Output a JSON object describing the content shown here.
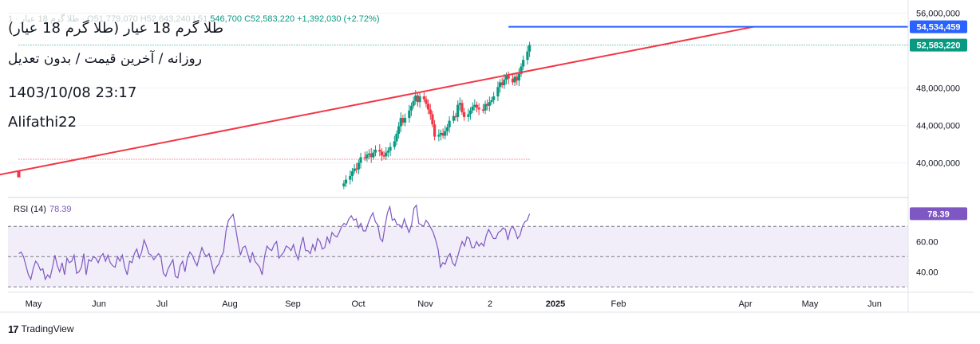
{
  "header": {
    "ohlc_faded": "طلا گرم 18 عیار · 1 · O51,779,070 H52,643,240 L51,",
    "ohlc_rest": "546,700",
    "close": "C52,583,220",
    "change": "+1,392,030 (+2.72%)",
    "title": "طلا گرم 18 عیار (طلا گرم 18 عیار)",
    "subtitle": "روزانه / آخرین قیمت / بدون تعدیل",
    "datetime": "1403/10/08 23:17",
    "author": "Alifathi22"
  },
  "branding": {
    "logo_mark": "17",
    "logo_text": "TradingView"
  },
  "colors": {
    "up": "#089981",
    "down": "#f23645",
    "trendline": "#f23645",
    "hline": "#2962ff",
    "rsi_line": "#7e57c2",
    "rsi_band": "#ede7f6",
    "grid": "#f0f3fa",
    "axis_text": "#131722"
  },
  "chart_data": [
    {
      "type": "candlestick",
      "title": "طلا گرم 18 عیار",
      "interval": "daily",
      "y_ticks": [
        56000000,
        48000000,
        44000000,
        40000000
      ],
      "y_tick_labels": [
        "56,000,000",
        "48,000,000",
        "44,000,000",
        "40,000,000"
      ],
      "ylim": [
        36300000,
        57400000
      ],
      "x_tick_labels": [
        "May",
        "Jun",
        "Jul",
        "Aug",
        "Sep",
        "Oct",
        "Nov",
        "2",
        "2025",
        "Feb",
        "Apr",
        "May",
        "Jun"
      ],
      "price_labels": [
        {
          "value": 54534459,
          "text": "54,534,459",
          "kind": "horizontal-line"
        },
        {
          "value": 52583220,
          "text": "52,583,220",
          "kind": "last-price"
        }
      ],
      "trendline": {
        "from": {
          "x": "2024-04-24",
          "y": 39150000
        },
        "to": {
          "x": "2025-04-01",
          "y": 54534459
        }
      },
      "horizontal_line": {
        "value": 54534459,
        "from": "2024-12-12"
      },
      "dotted_levels": [
        {
          "value": 52583220,
          "color": "#089981",
          "from": "2024-04-24"
        },
        {
          "value": 40380000,
          "color": "#f23645",
          "from": "2024-04-24",
          "to": "2024-12-22"
        }
      ],
      "closes_early": [
        {
          "date": "2024-04-24",
          "close": 38700000
        }
      ],
      "closes": [
        [
          "2024-09-25",
          37800000
        ],
        [
          "2024-09-26",
          38200000
        ],
        [
          "2024-09-28",
          38600000
        ],
        [
          "2024-09-29",
          39100000
        ],
        [
          "2024-09-30",
          39400000
        ],
        [
          "2024-10-01",
          39300000
        ],
        [
          "2024-10-02",
          40000000
        ],
        [
          "2024-10-03",
          40600000
        ],
        [
          "2024-10-05",
          40500000
        ],
        [
          "2024-10-06",
          40900000
        ],
        [
          "2024-10-07",
          41000000
        ],
        [
          "2024-10-08",
          40600000
        ],
        [
          "2024-10-09",
          41100000
        ],
        [
          "2024-10-10",
          41400000
        ],
        [
          "2024-10-12",
          41200000
        ],
        [
          "2024-10-13",
          40800000
        ],
        [
          "2024-10-14",
          40700000
        ],
        [
          "2024-10-15",
          41100000
        ],
        [
          "2024-10-16",
          41300000
        ],
        [
          "2024-10-17",
          41700000
        ],
        [
          "2024-10-19",
          42300000
        ],
        [
          "2024-10-20",
          43100000
        ],
        [
          "2024-10-21",
          43900000
        ],
        [
          "2024-10-22",
          44800000
        ],
        [
          "2024-10-23",
          44300000
        ],
        [
          "2024-10-24",
          44800000
        ],
        [
          "2024-10-26",
          45600000
        ],
        [
          "2024-10-27",
          46100000
        ],
        [
          "2024-10-28",
          46600000
        ],
        [
          "2024-10-29",
          47200000
        ],
        [
          "2024-10-30",
          46500000
        ],
        [
          "2024-10-31",
          47100000
        ],
        [
          "2024-11-02",
          46800000
        ],
        [
          "2024-11-03",
          46300000
        ],
        [
          "2024-11-04",
          45700000
        ],
        [
          "2024-11-05",
          45200000
        ],
        [
          "2024-11-06",
          44100000
        ],
        [
          "2024-11-07",
          42800000
        ],
        [
          "2024-11-09",
          43000000
        ],
        [
          "2024-11-10",
          43200000
        ],
        [
          "2024-11-11",
          42900000
        ],
        [
          "2024-11-12",
          43400000
        ],
        [
          "2024-11-13",
          43800000
        ],
        [
          "2024-11-14",
          44500000
        ],
        [
          "2024-11-16",
          45000000
        ],
        [
          "2024-11-17",
          44900000
        ],
        [
          "2024-11-18",
          46200000
        ],
        [
          "2024-11-19",
          46400000
        ],
        [
          "2024-11-20",
          45400000
        ],
        [
          "2024-11-21",
          44900000
        ],
        [
          "2024-11-23",
          45200000
        ],
        [
          "2024-11-24",
          45600000
        ],
        [
          "2024-11-25",
          46000000
        ],
        [
          "2024-11-26",
          46200000
        ],
        [
          "2024-11-27",
          45900000
        ],
        [
          "2024-11-28",
          45700000
        ],
        [
          "2024-11-30",
          45600000
        ],
        [
          "2024-12-01",
          46300000
        ],
        [
          "2024-12-02",
          46100000
        ],
        [
          "2024-12-03",
          46500000
        ],
        [
          "2024-12-04",
          46700000
        ],
        [
          "2024-12-05",
          47100000
        ],
        [
          "2024-12-07",
          48100000
        ],
        [
          "2024-12-08",
          48600000
        ],
        [
          "2024-12-09",
          48300000
        ],
        [
          "2024-12-10",
          48900000
        ],
        [
          "2024-12-11",
          49300000
        ],
        [
          "2024-12-12",
          49000000
        ],
        [
          "2024-12-14",
          48600000
        ],
        [
          "2024-12-15",
          49200000
        ],
        [
          "2024-12-16",
          48800000
        ],
        [
          "2024-12-17",
          49500000
        ],
        [
          "2024-12-18",
          50300000
        ],
        [
          "2024-12-19",
          51000000
        ],
        [
          "2024-12-21",
          51900000
        ],
        [
          "2024-12-22",
          52583220
        ]
      ]
    },
    {
      "type": "line",
      "title": "RSI (14)",
      "last_value": 78.39,
      "last_value_text": "78.39",
      "y_tick_labels": [
        "60.00",
        "40.00"
      ],
      "ylim": [
        27,
        87
      ],
      "bands": [
        70,
        50,
        30
      ],
      "series": [
        {
          "name": "RSI (14)",
          "x_range": [
            "2024-04-24",
            "2024-12-22"
          ],
          "values": [
            52,
            53,
            50,
            44,
            38,
            35,
            42,
            47,
            45,
            41,
            42,
            35,
            38,
            36,
            43,
            51,
            44,
            40,
            46,
            38,
            49,
            46,
            47,
            51,
            39,
            40,
            43,
            52,
            38,
            48,
            47,
            50,
            49,
            46,
            50,
            52,
            47,
            51,
            46,
            44,
            43,
            50,
            47,
            51,
            43,
            38,
            47,
            46,
            52,
            55,
            49,
            53,
            61,
            57,
            52,
            51,
            48,
            50,
            52,
            50,
            39,
            37,
            42,
            45,
            48,
            37,
            36,
            44,
            47,
            40,
            49,
            53,
            51,
            47,
            44,
            50,
            56,
            52,
            50,
            52,
            46,
            39,
            43,
            45,
            50,
            53,
            67,
            74,
            76,
            78,
            69,
            59,
            51,
            56,
            57,
            52,
            46,
            53,
            47,
            45,
            43,
            38,
            50,
            57,
            55,
            54,
            58,
            60,
            49,
            51,
            53,
            57,
            56,
            54,
            58,
            52,
            48,
            57,
            63,
            54,
            54,
            52,
            58,
            54,
            62,
            60,
            55,
            56,
            63,
            59,
            66,
            64,
            63,
            66,
            70,
            72,
            71,
            75,
            77,
            74,
            75,
            69,
            72,
            67,
            67,
            72,
            76,
            79,
            73,
            71,
            62,
            60,
            70,
            79,
            83,
            74,
            75,
            71,
            71,
            69,
            75,
            70,
            66,
            71,
            82,
            84,
            72,
            71,
            70,
            74,
            72,
            69,
            66,
            61,
            55,
            43,
            46,
            45,
            50,
            52,
            46,
            44,
            49,
            55,
            60,
            57,
            63,
            62,
            56,
            56,
            60,
            57,
            59,
            57,
            64,
            68,
            65,
            62,
            62,
            66,
            67,
            69,
            68,
            61,
            68,
            70,
            67,
            62,
            64,
            70,
            73,
            74,
            78.39
          ]
        }
      ]
    }
  ]
}
